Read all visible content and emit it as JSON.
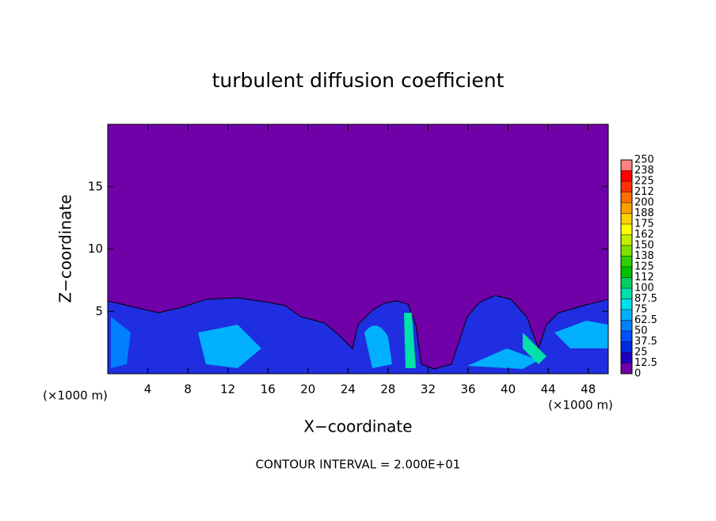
{
  "chart_data": {
    "type": "contour",
    "title": "turbulent diffusion coefficient",
    "x_label": "X−coordinate",
    "y_label": "Z−coordinate",
    "x_unit": "(×1000 m)",
    "y_unit": "(×1000 m)",
    "annotation": "CONTOUR INTERVAL = 2.000E+01",
    "xlim": [
      0,
      50
    ],
    "xticks": [
      4,
      8,
      12,
      16,
      20,
      24,
      28,
      32,
      36,
      40,
      44,
      48
    ],
    "ylim": [
      0,
      20
    ],
    "yticks": [
      5,
      10,
      15
    ],
    "colorbar_ticks": [
      0,
      12.5,
      25,
      37.5,
      50,
      62.5,
      75,
      87.5,
      100,
      {
        "value": 112.5,
        "label": "112"
      },
      125,
      {
        "value": 137.5,
        "label": "138"
      },
      150,
      {
        "value": 162.5,
        "label": "162"
      },
      175,
      {
        "value": 187.5,
        "label": "188"
      },
      200,
      {
        "value": 212.5,
        "label": "212"
      },
      225,
      {
        "value": 237.5,
        "label": "238"
      },
      250
    ],
    "colorbar_colors": [
      "#7000a8",
      "#2000c0",
      "#0028e0",
      "#0050ff",
      "#0080ff",
      "#00b0ff",
      "#00e0e8",
      "#00e0a8",
      "#00d060",
      "#00c000",
      "#30d000",
      "#80e000",
      "#c0f000",
      "#ffff00",
      "#ffd000",
      "#ffa000",
      "#ff7000",
      "#ff3000",
      "#ff0000",
      "#ff8080"
    ]
  }
}
